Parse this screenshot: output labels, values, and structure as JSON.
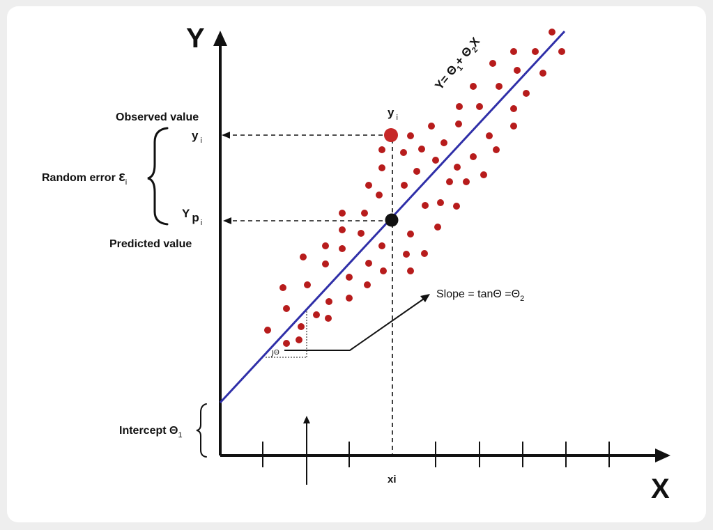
{
  "axes": {
    "y_label": "Y",
    "x_label": "X"
  },
  "labels": {
    "observed": "Observed value",
    "observed_symbol": "y",
    "observed_sub": "i",
    "random_error": "Random error ",
    "random_error_symbol": "ε",
    "random_error_sub": "i",
    "predicted_symbol": "Y",
    "predicted_p": "p",
    "predicted_sub": "i",
    "predicted": "Predicted value",
    "point_symbol": "y",
    "point_sub": "i",
    "intercept": "Intercept Θ",
    "intercept_sub": "1",
    "slope": "Slope = tanΘ =Θ",
    "slope_sub": "2",
    "xi": "xi",
    "theta": "Θ",
    "eq_y": "Y= Θ",
    "eq_sub1": "1",
    "eq_plus": "+ Θ",
    "eq_sub2": "2",
    "eq_x": "X"
  },
  "colors": {
    "points": "#b71c1c",
    "observed_point": "#c62828",
    "regression_line": "#2f2fa8",
    "axis": "#111111"
  }
}
